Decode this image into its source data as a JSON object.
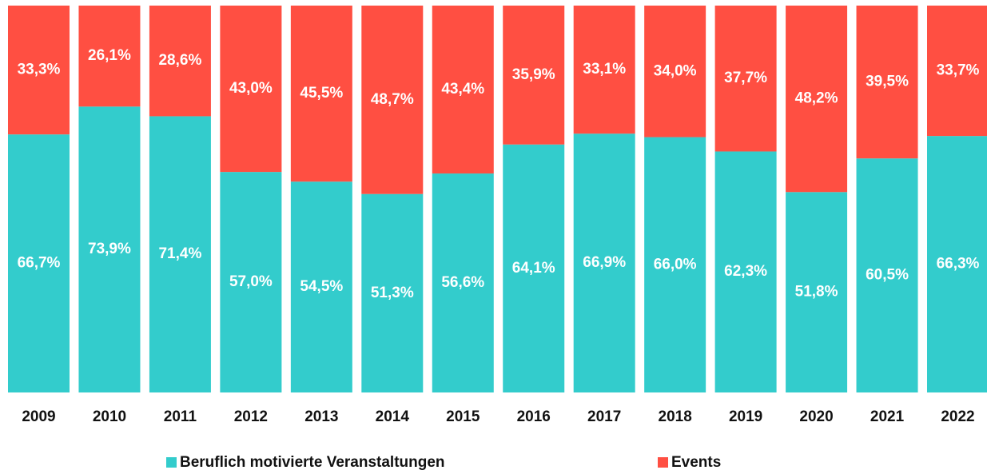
{
  "chart_data": {
    "type": "bar",
    "stacked": true,
    "categories": [
      "2009",
      "2010",
      "2011",
      "2012",
      "2013",
      "2014",
      "2015",
      "2016",
      "2017",
      "2018",
      "2019",
      "2020",
      "2021",
      "2022"
    ],
    "ylim": [
      0,
      100
    ],
    "series": [
      {
        "name": "Beruflich motivierte Veranstaltungen",
        "color": "#33cccc",
        "values": [
          66.7,
          73.9,
          71.4,
          57.0,
          54.5,
          51.3,
          56.6,
          64.1,
          66.9,
          66.0,
          62.3,
          51.8,
          60.5,
          66.3
        ],
        "value_labels": [
          "66,7%",
          "73,9%",
          "71,4%",
          "57,0%",
          "54,5%",
          "51,3%",
          "56,6%",
          "64,1%",
          "66,9%",
          "66,0%",
          "62,3%",
          "51,8%",
          "60,5%",
          "66,3%"
        ]
      },
      {
        "name": "Events",
        "color": "#ff4f42",
        "values": [
          33.3,
          26.1,
          28.6,
          43.0,
          45.5,
          48.7,
          43.4,
          35.9,
          33.1,
          34.0,
          37.7,
          48.2,
          39.5,
          33.7
        ],
        "value_labels": [
          "33,3%",
          "26,1%",
          "28,6%",
          "43,0%",
          "45,5%",
          "48,7%",
          "43,4%",
          "35,9%",
          "33,1%",
          "34,0%",
          "37,7%",
          "48,2%",
          "39,5%",
          "33,7%"
        ]
      }
    ]
  }
}
